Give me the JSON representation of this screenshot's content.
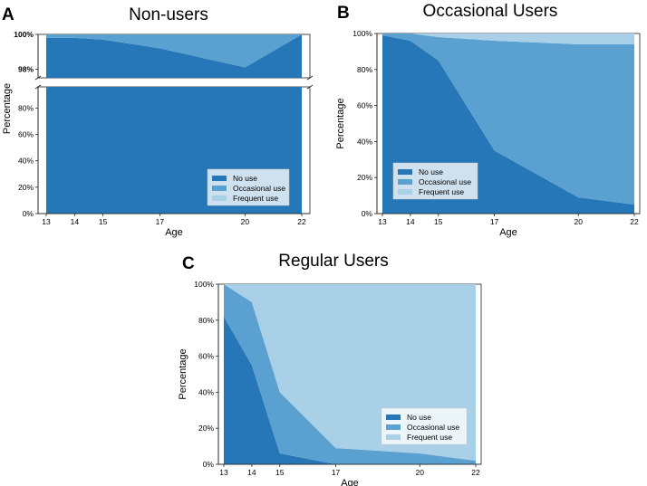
{
  "colors": {
    "no_use": "#2577b8",
    "occasional_use": "#5aa0d1",
    "frequent_use": "#a9d0e7"
  },
  "chart_data": [
    {
      "type": "area",
      "stacked": true,
      "panel_letter": "A",
      "title": "Non-users",
      "xlabel": "Age",
      "ylabel": "Percentage",
      "x": [
        13,
        14,
        15,
        17,
        20,
        22
      ],
      "x_ticks": [
        "13",
        "14",
        "15",
        "17",
        "20",
        "22"
      ],
      "y_ticks_lower": [
        "0%",
        "20%",
        "40%",
        "60%",
        "80%"
      ],
      "y_ticks_upper": [
        "98%",
        "100%"
      ],
      "broken_y_axis": true,
      "ylim_lower": [
        0,
        96
      ],
      "ylim_upper": [
        97.5,
        100
      ],
      "series": [
        {
          "name": "No use",
          "values": [
            99.8,
            99.8,
            99.7,
            99.2,
            98.1,
            100
          ]
        },
        {
          "name": "Occasional use",
          "values": [
            0.2,
            0.2,
            0.3,
            0.8,
            1.9,
            0
          ]
        },
        {
          "name": "Frequent use",
          "values": [
            0,
            0,
            0,
            0,
            0,
            0
          ]
        }
      ],
      "legend_position": "bottom-right"
    },
    {
      "type": "area",
      "stacked": true,
      "panel_letter": "B",
      "title": "Occasional Users",
      "xlabel": "Age",
      "ylabel": "Percentage",
      "x": [
        13,
        14,
        15,
        17,
        20,
        22
      ],
      "x_ticks": [
        "13",
        "14",
        "15",
        "17",
        "20",
        "22"
      ],
      "y_ticks": [
        "0%",
        "20%",
        "40%",
        "60%",
        "80%",
        "100%"
      ],
      "ylim": [
        0,
        100
      ],
      "series": [
        {
          "name": "No use",
          "values": [
            99,
            96,
            85,
            35,
            9,
            5
          ]
        },
        {
          "name": "Occasional use",
          "values": [
            1,
            4,
            13,
            61,
            85,
            89
          ]
        },
        {
          "name": "Frequent use",
          "values": [
            0,
            0,
            2,
            4,
            6,
            6
          ]
        }
      ],
      "legend_position": "bottom-left"
    },
    {
      "type": "area",
      "stacked": true,
      "panel_letter": "C",
      "title": "Regular Users",
      "xlabel": "Age",
      "ylabel": "Percentage",
      "x": [
        13,
        14,
        15,
        17,
        20,
        22
      ],
      "x_ticks": [
        "13",
        "14",
        "15",
        "17",
        "20",
        "22"
      ],
      "y_ticks": [
        "0%",
        "20%",
        "40%",
        "60%",
        "80%",
        "100%"
      ],
      "ylim": [
        0,
        100
      ],
      "series": [
        {
          "name": "No use",
          "values": [
            82,
            55,
            6,
            0,
            0,
            0
          ]
        },
        {
          "name": "Occasional use",
          "values": [
            18,
            35,
            34,
            9,
            6,
            2
          ]
        },
        {
          "name": "Frequent use",
          "values": [
            0,
            10,
            60,
            91,
            94,
            98
          ]
        }
      ],
      "legend_position": "bottom-right"
    }
  ]
}
